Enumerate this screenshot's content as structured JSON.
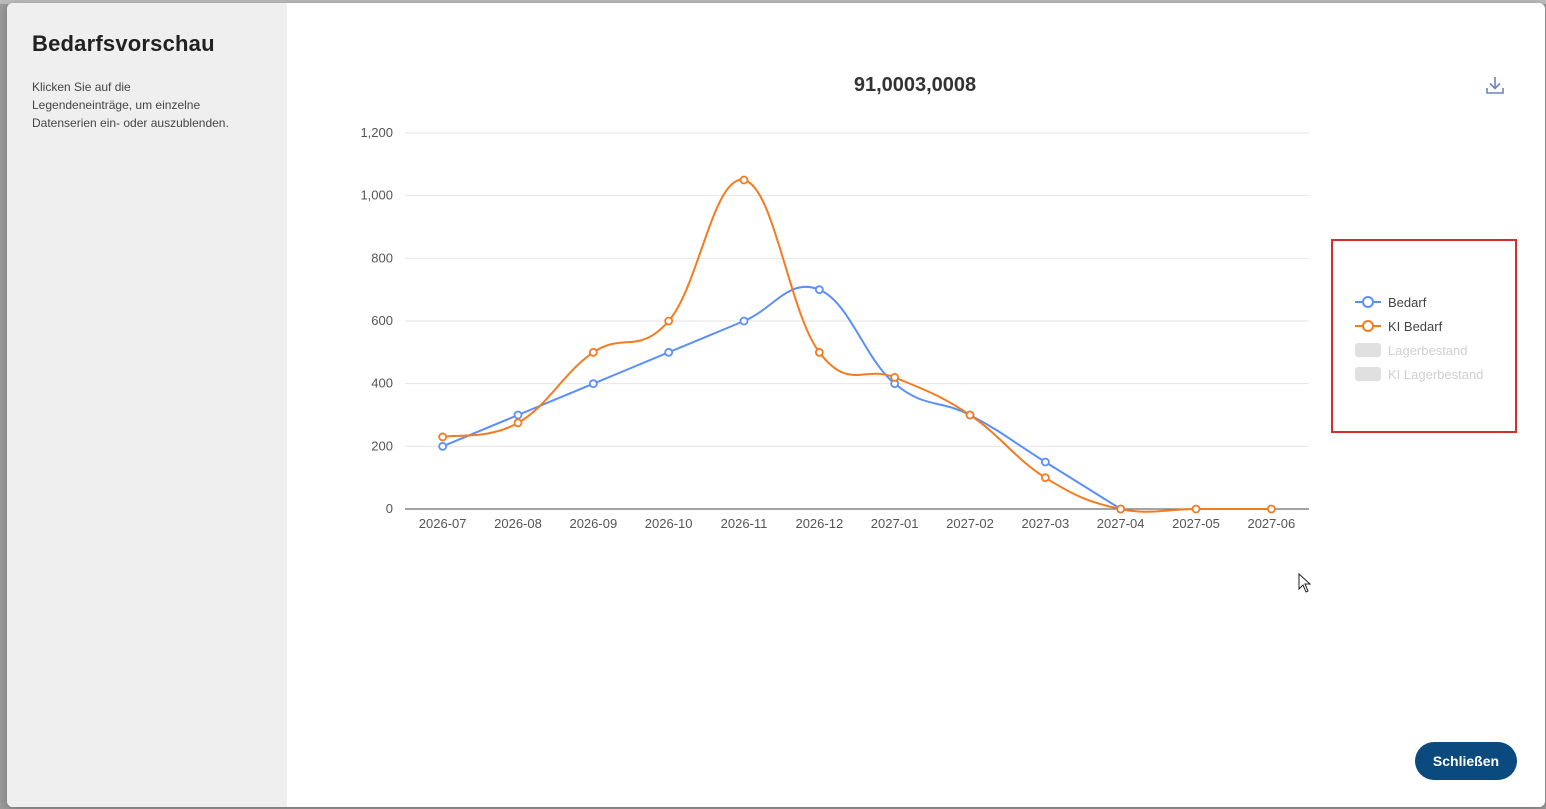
{
  "dialog": {
    "title": "Bedarfsvorschau",
    "hint": "Klicken Sie auf die Legendeneinträge, um einzelne Datenserien ein- oder auszublenden.",
    "close_label": "Schließen",
    "download_icon": "download-icon"
  },
  "legend": [
    {
      "name": "Bedarf",
      "active": true,
      "color": "#5b8ff9"
    },
    {
      "name": "KI Bedarf",
      "active": true,
      "color": "#f47b20"
    },
    {
      "name": "Lagerbestand",
      "active": false,
      "color": "#e0e0e0"
    },
    {
      "name": "KI Lagerbestand",
      "active": false,
      "color": "#e0e0e0"
    }
  ],
  "chart_data": {
    "type": "line",
    "title": "91,0003,0008",
    "categories": [
      "2026-07",
      "2026-08",
      "2026-09",
      "2026-10",
      "2026-11",
      "2026-12",
      "2027-01",
      "2027-02",
      "2027-03",
      "2027-04",
      "2027-05",
      "2027-06"
    ],
    "ylim": [
      0,
      1200
    ],
    "yticks": [
      0,
      200,
      400,
      600,
      800,
      1000,
      1200
    ],
    "ytick_labels": [
      "0",
      "200",
      "400",
      "600",
      "800",
      "1,000",
      "1,200"
    ],
    "grid": true,
    "legend_position": "right",
    "series": [
      {
        "name": "Bedarf",
        "color": "#5b8ff9",
        "values": [
          200,
          300,
          400,
          500,
          600,
          700,
          400,
          300,
          150,
          0,
          null,
          null
        ]
      },
      {
        "name": "KI Bedarf",
        "color": "#f47b20",
        "values": [
          230,
          275,
          500,
          600,
          1050,
          500,
          420,
          300,
          100,
          0,
          0,
          0
        ]
      }
    ]
  }
}
